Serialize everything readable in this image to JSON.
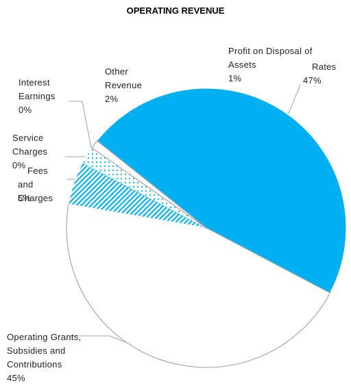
{
  "chart_data": {
    "type": "pie",
    "title": "OPERATING REVENUE",
    "categories": [
      "Rates",
      "Operating Grants, Subsidies and Contributions",
      "Fees and Charges",
      "Service Charges",
      "Interest Earnings",
      "Other Revenue",
      "Profit on Disposal of Assets"
    ],
    "values": [
      47,
      45,
      5,
      0,
      0,
      2,
      1
    ],
    "value_labels": [
      "47%",
      "45%",
      "5%",
      "0%",
      "0%",
      "2%",
      "1%"
    ],
    "colors": [
      "#00b0f0",
      "#ffffff",
      "#00b0f0",
      "#00b0f0",
      "#00b0f0",
      "#00b0f0",
      "#ffffff"
    ],
    "patterns": [
      "solid",
      "solid",
      "hatch",
      "solid",
      "solid",
      "dots",
      "solid"
    ]
  }
}
